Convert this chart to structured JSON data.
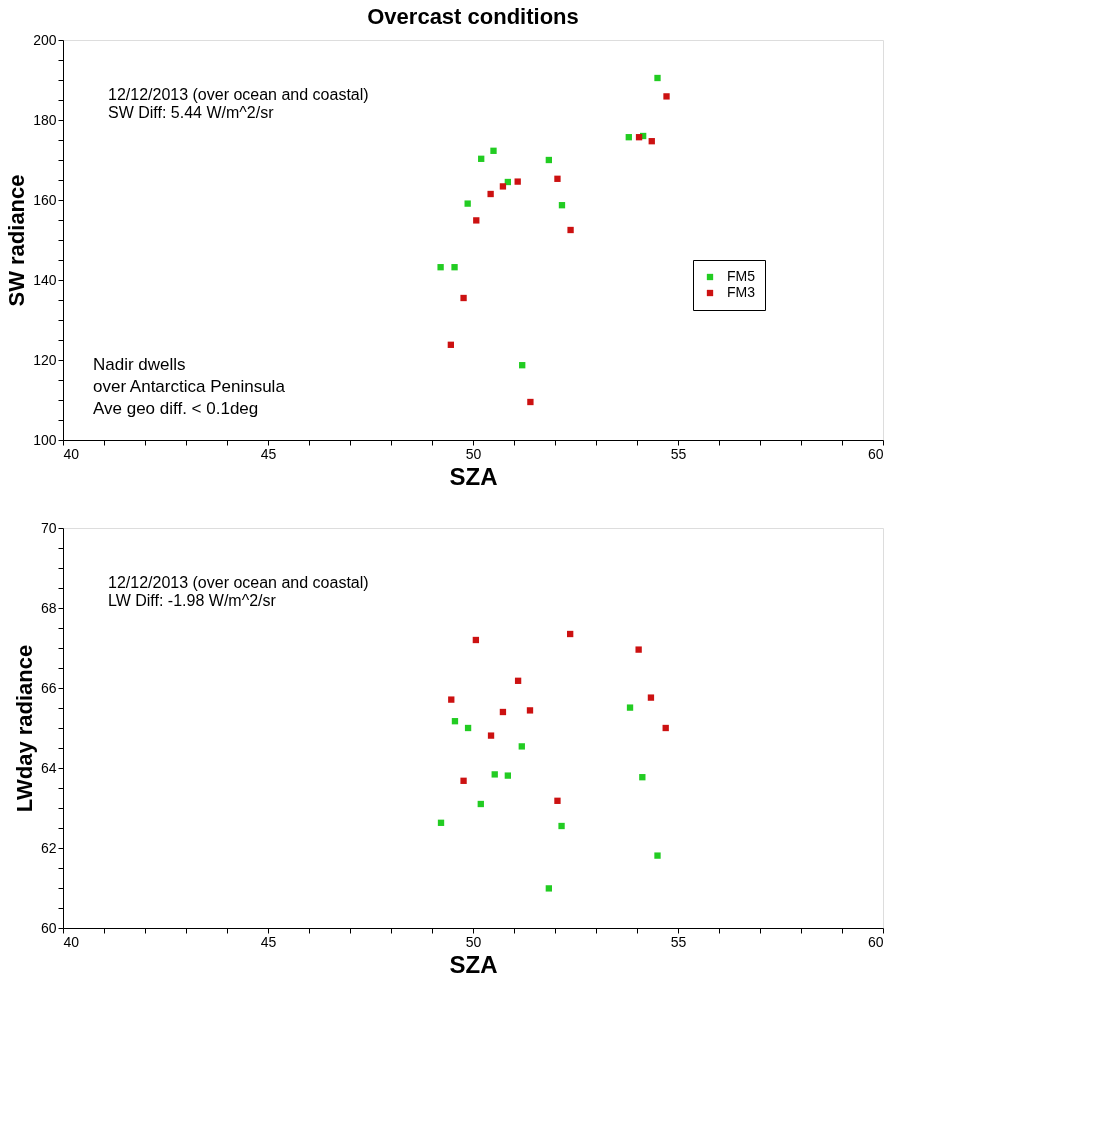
{
  "chart_data": [
    {
      "type": "scatter",
      "title": "Overcast conditions",
      "xlabel": "SZA",
      "ylabel": "SW radiance",
      "legend": "right",
      "marker": "square",
      "grid": false,
      "xlim": [
        40,
        60
      ],
      "ylim": [
        100,
        200
      ],
      "xticks": [
        40,
        {
          "value": 41,
          "label": null
        },
        {
          "value": 42,
          "label": null
        },
        {
          "value": 43,
          "label": null
        },
        {
          "value": 44,
          "label": null
        },
        45,
        {
          "value": 46,
          "label": null
        },
        {
          "value": 47,
          "label": null
        },
        {
          "value": 48,
          "label": null
        },
        {
          "value": 49,
          "label": null
        },
        50,
        {
          "value": 51,
          "label": null
        },
        {
          "value": 52,
          "label": null
        },
        {
          "value": 53,
          "label": null
        },
        {
          "value": 54,
          "label": null
        },
        55,
        {
          "value": 56,
          "label": null
        },
        {
          "value": 57,
          "label": null
        },
        {
          "value": 58,
          "label": null
        },
        {
          "value": 59,
          "label": null
        },
        60
      ],
      "yticks": [
        100,
        {
          "value": 105,
          "label": null
        },
        {
          "value": 110,
          "label": null
        },
        {
          "value": 115,
          "label": null
        },
        120,
        {
          "value": 125,
          "label": null
        },
        {
          "value": 130,
          "label": null
        },
        {
          "value": 135,
          "label": null
        },
        140,
        {
          "value": 145,
          "label": null
        },
        {
          "value": 150,
          "label": null
        },
        {
          "value": 155,
          "label": null
        },
        160,
        {
          "value": 165,
          "label": null
        },
        {
          "value": 170,
          "label": null
        },
        {
          "value": 175,
          "label": null
        },
        180,
        {
          "value": 185,
          "label": null
        },
        {
          "value": 190,
          "label": null
        },
        {
          "value": 195,
          "label": null
        },
        200
      ],
      "annotations": [
        "12/12/2013 (over ocean and coastal)",
        "SW Diff: 5.44 W/m^2/sr",
        "Nadir dwells",
        "over Antarctica Peninsula",
        "Ave geo diff. < 0.1deg"
      ],
      "series": [
        {
          "name": "FM5",
          "color": "#22cc22",
          "x": [
            54.5,
            53.8,
            54.15,
            50.5,
            50.2,
            51.85,
            50.85,
            49.87,
            52.17,
            49.21,
            49.55,
            51.2
          ],
          "values": [
            190.5,
            175.7,
            176,
            172.3,
            170.3,
            170,
            164.5,
            159.1,
            158.7,
            143.2,
            143.2,
            118.7
          ]
        },
        {
          "name": "FM3",
          "color": "#cc1111",
          "x": [
            54.72,
            54.05,
            54.36,
            51.09,
            52.06,
            50.73,
            50.43,
            50.08,
            52.38,
            49.77,
            49.46,
            51.4
          ],
          "values": [
            185.9,
            175.7,
            174.7,
            164.6,
            165.3,
            163.4,
            161.5,
            154.9,
            152.5,
            135.5,
            123.8,
            109.5
          ]
        }
      ]
    },
    {
      "type": "scatter",
      "xlabel": "SZA",
      "ylabel": "LWday radiance",
      "marker": "square",
      "grid": false,
      "xlim": [
        40,
        60
      ],
      "ylim": [
        60,
        70
      ],
      "xticks": [
        40,
        {
          "value": 41,
          "label": null
        },
        {
          "value": 42,
          "label": null
        },
        {
          "value": 43,
          "label": null
        },
        {
          "value": 44,
          "label": null
        },
        45,
        {
          "value": 46,
          "label": null
        },
        {
          "value": 47,
          "label": null
        },
        {
          "value": 48,
          "label": null
        },
        {
          "value": 49,
          "label": null
        },
        50,
        {
          "value": 51,
          "label": null
        },
        {
          "value": 52,
          "label": null
        },
        {
          "value": 53,
          "label": null
        },
        {
          "value": 54,
          "label": null
        },
        55,
        {
          "value": 56,
          "label": null
        },
        {
          "value": 57,
          "label": null
        },
        {
          "value": 58,
          "label": null
        },
        {
          "value": 59,
          "label": null
        },
        60
      ],
      "yticks": [
        60,
        {
          "value": 60.5,
          "label": null
        },
        {
          "value": 61,
          "label": null
        },
        {
          "value": 61.5,
          "label": null
        },
        62,
        {
          "value": 62.5,
          "label": null
        },
        {
          "value": 63,
          "label": null
        },
        {
          "value": 63.5,
          "label": null
        },
        64,
        {
          "value": 64.5,
          "label": null
        },
        {
          "value": 65,
          "label": null
        },
        {
          "value": 65.5,
          "label": null
        },
        66,
        {
          "value": 66.5,
          "label": null
        },
        {
          "value": 67,
          "label": null
        },
        {
          "value": 67.5,
          "label": null
        },
        68,
        {
          "value": 68.5,
          "label": null
        },
        {
          "value": 69,
          "label": null
        },
        {
          "value": 69.5,
          "label": null
        },
        70
      ],
      "annotations": [
        "12/12/2013 (over ocean and coastal)",
        "LW Diff: -1.98 W/m^2/sr"
      ],
      "series": [
        {
          "color": "#22cc22",
          "x": [
            53.83,
            49.56,
            49.88,
            51.19,
            50.53,
            50.85,
            54.13,
            50.19,
            49.22,
            52.16,
            54.5,
            51.85
          ],
          "values": [
            65.51,
            65.17,
            65.0,
            64.54,
            63.84,
            63.81,
            63.77,
            63.1,
            62.63,
            62.55,
            61.81,
            60.99
          ]
        },
        {
          "color": "#cc1111",
          "x": [
            50.07,
            52.37,
            54.04,
            51.1,
            49.47,
            54.34,
            50.73,
            51.39,
            54.7,
            50.44,
            49.77,
            52.06
          ],
          "values": [
            67.2,
            67.35,
            66.96,
            66.18,
            65.71,
            65.76,
            65.4,
            65.44,
            65.0,
            64.81,
            63.68,
            63.18
          ]
        }
      ]
    }
  ]
}
